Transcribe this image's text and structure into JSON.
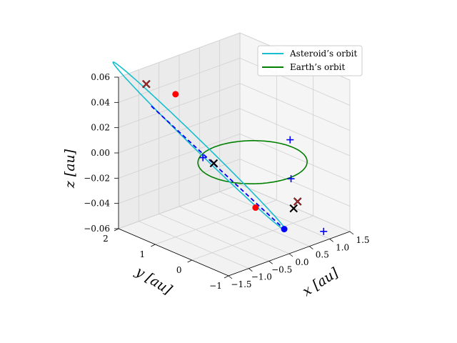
{
  "chart_data": {
    "type": "3d-line",
    "title": "",
    "xlabel": "x [au]",
    "ylabel": "y [au]",
    "zlabel": "z [au]",
    "x_ticks": [
      "−1.5",
      "−1.0",
      "−0.5",
      "0.0",
      "0.5",
      "1.0",
      "1.5"
    ],
    "y_ticks": [
      "−1",
      "0",
      "1",
      "2"
    ],
    "z_ticks": [
      "0.06",
      "0.04",
      "0.02",
      "0.00",
      "−0.02",
      "−0.04",
      "−0.06"
    ],
    "xlim": [
      -1.5,
      1.5
    ],
    "ylim": [
      -1,
      2
    ],
    "zlim": [
      -0.06,
      0.06
    ],
    "grid": true,
    "legend_position": "top-right",
    "series": [
      {
        "name": "Asteroid’s orbit",
        "color": "#17becf",
        "kind": "ellipse",
        "center": [
          -0.45,
          0.95,
          0.006
        ],
        "semi_axis_u": [
          1.05,
          -1.2,
          -0.064
        ],
        "semi_axis_v": [
          -0.02,
          0.03,
          -0.004
        ]
      },
      {
        "name": "Earth’s orbit",
        "color": "#008000",
        "kind": "circle",
        "center": [
          0,
          0,
          0
        ],
        "radius": 1.0
      }
    ],
    "transfer_line": {
      "color": "#0000ff",
      "style": "dashed",
      "from": [
        -0.98,
        1.68,
        0.035
      ],
      "to": [
        0.62,
        -0.18,
        -0.058
      ]
    },
    "red_points": [
      [
        -0.68,
        1.35,
        0.045
      ],
      [
        0.12,
        0.05,
        -0.038
      ]
    ],
    "blue_points": [
      [
        0.62,
        -0.18,
        -0.058
      ]
    ],
    "red_crosses": [
      [
        -0.95,
        1.85,
        0.05
      ],
      [
        0.95,
        -0.18,
        -0.04
      ]
    ],
    "black_crosses": [
      [
        -0.95,
        1.85,
        0.05
      ],
      [
        0.95,
        -0.18,
        -0.04
      ],
      [
        -0.55,
        0.45,
        0.0
      ],
      [
        0.88,
        -0.15,
        -0.045
      ]
    ],
    "blue_plus": [
      [
        -0.52,
        0.78,
        0.0
      ],
      [
        1.2,
        0.3,
        0.0
      ],
      [
        0.0,
        -1.05,
        0.0
      ],
      [
        1.35,
        -0.45,
        -0.065
      ]
    ]
  }
}
